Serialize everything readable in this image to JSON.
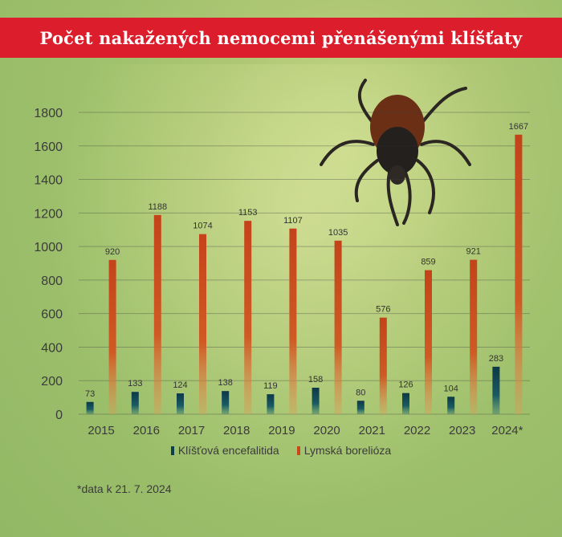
{
  "title": "Počet nakažených nemocemi přenášenými klíšťaty",
  "footnote": "*data k 21. 7. 2024",
  "colors": {
    "title_bar": "#dc1d2b",
    "encefalitida": "#0f3f4d",
    "borelioza": "#c9491d"
  },
  "legend": [
    {
      "name": "Klíšťová encefalitida",
      "color": "#0f3f4d"
    },
    {
      "name": "Lymská borelióza",
      "color": "#c9491d"
    }
  ],
  "chart_data": {
    "type": "bar",
    "title": "Počet nakažených nemocemi přenášenými klíšťaty",
    "xlabel": "",
    "ylabel": "",
    "categories": [
      "2015",
      "2016",
      "2017",
      "2018",
      "2019",
      "2020",
      "2021",
      "2022",
      "2023",
      "2024*"
    ],
    "series": [
      {
        "name": "Klíšťová encefalitida",
        "values": [
          73,
          133,
          124,
          138,
          119,
          158,
          80,
          126,
          104,
          283
        ]
      },
      {
        "name": "Lymská borelióza",
        "values": [
          920,
          1188,
          1074,
          1153,
          1107,
          1035,
          576,
          859,
          921,
          1667
        ]
      }
    ],
    "ylim": [
      0,
      1800
    ],
    "yticks": [
      0,
      200,
      400,
      600,
      800,
      1000,
      1200,
      1400,
      1600,
      1800
    ],
    "grid": true,
    "legend_position": "bottom"
  }
}
